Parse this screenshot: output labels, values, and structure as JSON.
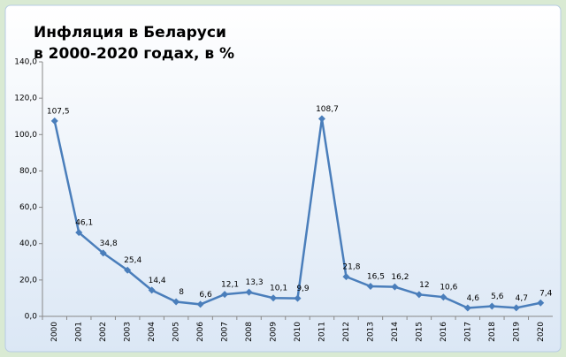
{
  "chart_data": {
    "type": "line",
    "title": "Инфляция в Беларуси",
    "subtitle": "в 2000-2020 годах, в %",
    "categories": [
      "2000",
      "2001",
      "2002",
      "2003",
      "2004",
      "2005",
      "2006",
      "2007",
      "2008",
      "2009",
      "2010",
      "2011",
      "2012",
      "2013",
      "2014",
      "2015",
      "2016",
      "2017",
      "2018",
      "2019",
      "2020"
    ],
    "values": [
      107.5,
      46.1,
      34.8,
      25.4,
      14.4,
      8,
      6.6,
      12.1,
      13.3,
      10.1,
      9.9,
      108.7,
      21.8,
      16.5,
      16.2,
      12,
      10.6,
      4.6,
      5.6,
      4.7,
      7.4
    ],
    "value_labels": [
      "107,5",
      "46,1",
      "34,8",
      "25,4",
      "14,4",
      "8",
      "6,6",
      "12,1",
      "13,3",
      "10,1",
      "9,9",
      "108,7",
      "21,8",
      "16,5",
      "16,2",
      "12",
      "10,6",
      "4,6",
      "5,6",
      "4,7",
      "7,4"
    ],
    "color": "#4a7ebb",
    "ylim": [
      0,
      140
    ],
    "yticks": [
      {
        "value": 0,
        "label": "0,0"
      },
      {
        "value": 20,
        "label": "20,0"
      },
      {
        "value": 40,
        "label": "40,0"
      },
      {
        "value": 60,
        "label": "60,0"
      },
      {
        "value": 80,
        "label": "80,0"
      },
      {
        "value": 100,
        "label": "100,0"
      },
      {
        "value": 120,
        "label": "120,0"
      },
      {
        "value": 140,
        "label": "140,0"
      }
    ],
    "grid": false
  }
}
